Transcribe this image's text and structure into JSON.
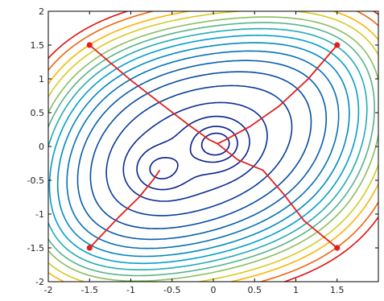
{
  "chart_data": {
    "type": "line",
    "title": "",
    "xlabel": "",
    "ylabel": "",
    "xlim": [
      -2,
      2
    ],
    "ylim": [
      -2,
      2
    ],
    "grid": false,
    "x_ticks": [
      {
        "value": -2,
        "label": "-2"
      },
      {
        "value": -1.5,
        "label": "-1.5"
      },
      {
        "value": -1,
        "label": "-1"
      },
      {
        "value": -0.5,
        "label": "-0.5"
      },
      {
        "value": 0,
        "label": "0"
      },
      {
        "value": 0.5,
        "label": "0.5"
      },
      {
        "value": 1,
        "label": "1"
      },
      {
        "value": 1.5,
        "label": "1.5"
      }
    ],
    "y_ticks": [
      {
        "value": 2,
        "label": "2"
      },
      {
        "value": 1.5,
        "label": "1.5"
      },
      {
        "value": 1,
        "label": "1"
      },
      {
        "value": 0.5,
        "label": "0.5"
      },
      {
        "value": 0,
        "label": "0"
      },
      {
        "value": -0.5,
        "label": "-0.5"
      },
      {
        "value": -1,
        "label": "-1"
      },
      {
        "value": -1.5,
        "label": "-1.5"
      },
      {
        "value": -2,
        "label": "-2"
      }
    ],
    "contours": {
      "minima": [
        {
          "x": 0.05,
          "y": 0.04
        },
        {
          "x": -0.65,
          "y": -0.35
        }
      ],
      "levels": [
        0.5,
        1.5,
        3,
        4.5,
        6,
        7.5,
        9,
        10.5,
        12,
        13.5,
        15,
        16.5,
        18,
        20,
        22,
        24.5,
        27
      ],
      "colors": [
        "#0a1a8a",
        "#00a5cf",
        "#ffd200",
        "#e01010"
      ]
    },
    "series": [
      {
        "color": "#e02020",
        "points": [
          {
            "x": -1.5,
            "y": 1.5
          },
          {
            "x": -1.0,
            "y": 0.98
          },
          {
            "x": -0.6,
            "y": 0.6
          },
          {
            "x": -0.3,
            "y": 0.32
          },
          {
            "x": -0.05,
            "y": 0.1
          },
          {
            "x": 0.05,
            "y": 0.04
          }
        ]
      },
      {
        "color": "#e02020",
        "points": [
          {
            "x": 1.5,
            "y": 1.5
          },
          {
            "x": 1.15,
            "y": 1.0
          },
          {
            "x": 0.8,
            "y": 0.6
          },
          {
            "x": 0.45,
            "y": 0.3
          },
          {
            "x": 0.15,
            "y": 0.1
          },
          {
            "x": 0.05,
            "y": 0.04
          }
        ]
      },
      {
        "color": "#e02020",
        "points": [
          {
            "x": -1.5,
            "y": -1.5
          },
          {
            "x": -1.15,
            "y": -1.05
          },
          {
            "x": -0.9,
            "y": -0.75
          },
          {
            "x": -0.72,
            "y": -0.48
          },
          {
            "x": -0.65,
            "y": -0.35
          }
        ]
      },
      {
        "color": "#e02020",
        "points": [
          {
            "x": 1.5,
            "y": -1.5
          },
          {
            "x": 1.1,
            "y": -1.1
          },
          {
            "x": 0.85,
            "y": -0.7
          },
          {
            "x": 0.6,
            "y": -0.35
          },
          {
            "x": 0.3,
            "y": -0.2
          },
          {
            "x": 0.05,
            "y": 0.04
          }
        ]
      }
    ],
    "start_points": [
      {
        "x": -1.5,
        "y": 1.5
      },
      {
        "x": 1.5,
        "y": 1.5
      },
      {
        "x": -1.5,
        "y": -1.5
      },
      {
        "x": 1.5,
        "y": -1.5
      }
    ]
  }
}
